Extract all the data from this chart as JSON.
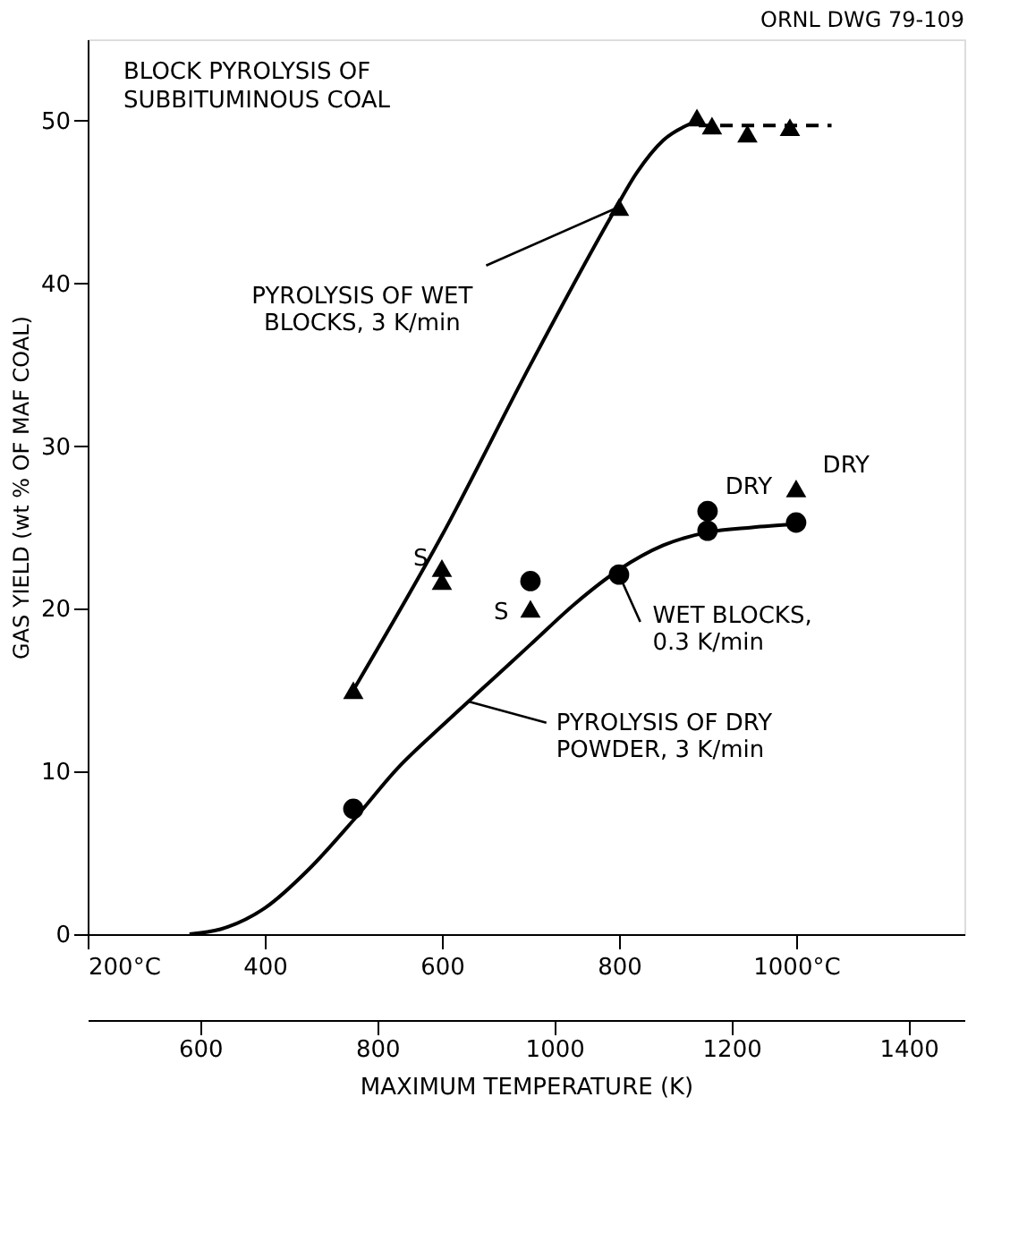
{
  "chart_data": {
    "type": "scatter",
    "title": "BLOCK PYROLYSIS OF\nSUBBITUMINOUS COAL",
    "ylabel": "GAS YIELD (wt % OF MAF COAL)",
    "x2label": "MAXIMUM TEMPERATURE (K)",
    "xlim": [
      200,
      1190
    ],
    "xticks": [
      {
        "value": 200,
        "label": "200°C"
      },
      400,
      600,
      800,
      {
        "value": 1000,
        "label": "1000°C"
      }
    ],
    "x2lim": [
      473,
      1463
    ],
    "x2ticks": [
      600,
      800,
      1000,
      1200,
      1400
    ],
    "ylim": [
      0,
      55
    ],
    "yticks": [
      0,
      10,
      20,
      30,
      40,
      50
    ],
    "grid": false,
    "legend": false,
    "series": [
      {
        "type": "line",
        "color": "#000000",
        "marker": "none",
        "line_style": "solid",
        "x": [
          500,
          600,
          700,
          790,
          820,
          850,
          880
        ],
        "values": [
          15,
          24.5,
          35,
          44,
          46.8,
          48.8,
          49.8
        ]
      },
      {
        "type": "line",
        "color": "#000000",
        "marker": "none",
        "line_style": "dashed",
        "x": [
          890,
          1040
        ],
        "values": [
          49.7,
          49.7
        ]
      },
      {
        "type": "line",
        "color": "#000000",
        "marker": "none",
        "line_style": "solid",
        "x": [
          315,
          350,
          400,
          450,
          500,
          550,
          600,
          650,
          700,
          750,
          800,
          850,
          900,
          950,
          1000
        ],
        "values": [
          0,
          0.3,
          1.6,
          4,
          7,
          10.2,
          12.8,
          15.3,
          17.8,
          20.3,
          22.4,
          23.9,
          24.7,
          25.0,
          25.2
        ]
      },
      {
        "color": "#000000",
        "marker": "triangle",
        "x": [
          500,
          600,
          600,
          700,
          800,
          888,
          905,
          945,
          993,
          1000
        ],
        "values": [
          15,
          22.5,
          21.7,
          20.0,
          44.7,
          50.2,
          49.7,
          49.2,
          49.6,
          27.4
        ]
      },
      {
        "color": "#000000",
        "marker": "circle",
        "x": [
          500,
          700,
          800,
          900,
          900,
          1000
        ],
        "values": [
          7.7,
          21.7,
          22.1,
          26.0,
          24.8,
          25.3
        ]
      }
    ],
    "annotations": [
      "ORNL DWG 79-109",
      {
        "text": "PYROLYSIS OF WET\nBLOCKS, 3 K/min",
        "x": 800,
        "y": 44.7
      },
      {
        "text": "WET BLOCKS,\n0.3 K/min",
        "x": 800,
        "y": 22.1
      },
      {
        "text": "PYROLYSIS OF DRY\nPOWDER, 3 K/min",
        "x": 630,
        "y": 14.3
      },
      {
        "text": "S",
        "x": 600,
        "y": 22.5
      },
      {
        "text": "S",
        "x": 700,
        "y": 20.0
      },
      {
        "text": "DRY",
        "x": 900,
        "y": 26.0
      },
      {
        "text": "DRY",
        "x": 1000,
        "y": 27.4
      }
    ]
  }
}
